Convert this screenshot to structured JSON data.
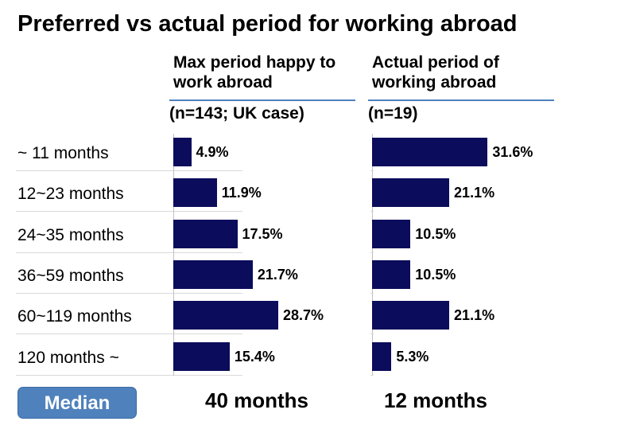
{
  "chart_data": {
    "type": "bar",
    "orientation": "horizontal",
    "title": "Preferred vs actual period for working abroad",
    "categories": [
      "~ 11 months",
      "12~23 months",
      "24~35 months",
      "36~59 months",
      "60~119 months",
      "120 months ~"
    ],
    "median_label": "Median",
    "series": [
      {
        "name": "Max period happy to work abroad",
        "note": "(n=143; UK case)",
        "color": "#0c0c5c",
        "values": [
          4.9,
          11.9,
          17.5,
          21.7,
          28.7,
          15.4
        ],
        "value_labels": [
          "4.9%",
          "11.9%",
          "17.5%",
          "21.7%",
          "28.7%",
          "15.4%"
        ],
        "median": "40 months"
      },
      {
        "name": "Actual period of working abroad",
        "note": "(n=19)",
        "color": "#0c0c5c",
        "values": [
          31.6,
          21.1,
          10.5,
          10.5,
          21.1,
          5.3
        ],
        "value_labels": [
          "31.6%",
          "21.1%",
          "10.5%",
          "10.5%",
          "21.1%",
          "5.3%"
        ],
        "median": "12 months"
      }
    ]
  }
}
